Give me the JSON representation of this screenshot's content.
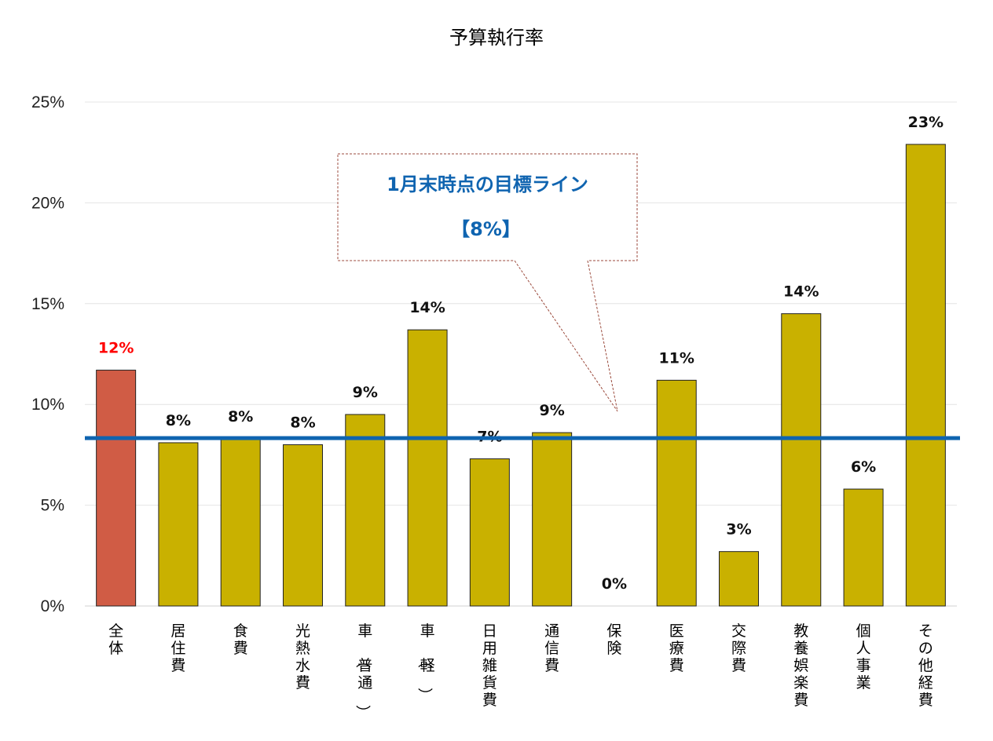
{
  "chart_data": {
    "type": "bar",
    "title": "予算執行率",
    "categories": [
      "全体",
      "居住費",
      "食費",
      "光熱水費",
      "車（普通）",
      "車（軽）",
      "日用雑貨費",
      "通信費",
      "保険",
      "医療費",
      "交際費",
      "教養娯楽費",
      "個人事業",
      "その他経費"
    ],
    "values": [
      11.7,
      8.1,
      8.3,
      8.0,
      9.5,
      13.7,
      7.3,
      8.6,
      0.0,
      11.2,
      2.7,
      14.5,
      5.8,
      22.9
    ],
    "data_labels": [
      "12%",
      "8%",
      "8%",
      "8%",
      "9%",
      "14%",
      "7%",
      "9%",
      "0%",
      "11%",
      "3%",
      "14%",
      "6%",
      "23%"
    ],
    "highlight_index": 0,
    "ylim": [
      0,
      25
    ],
    "yticks": [
      "0%",
      "5%",
      "10%",
      "15%",
      "20%",
      "25%"
    ],
    "grid": true,
    "target_line": {
      "value": 8.33
    },
    "callout": {
      "line1": "1月末時点の目標ライン",
      "line2": "【8%】"
    },
    "colors": {
      "bar": "#C9B100",
      "highlight_bar": "#D05C45",
      "highlight_label": "#FF0000",
      "target_line": "#0F64B0",
      "callout_text": "#0F64B0",
      "callout_border": "#9B4A3C"
    }
  }
}
